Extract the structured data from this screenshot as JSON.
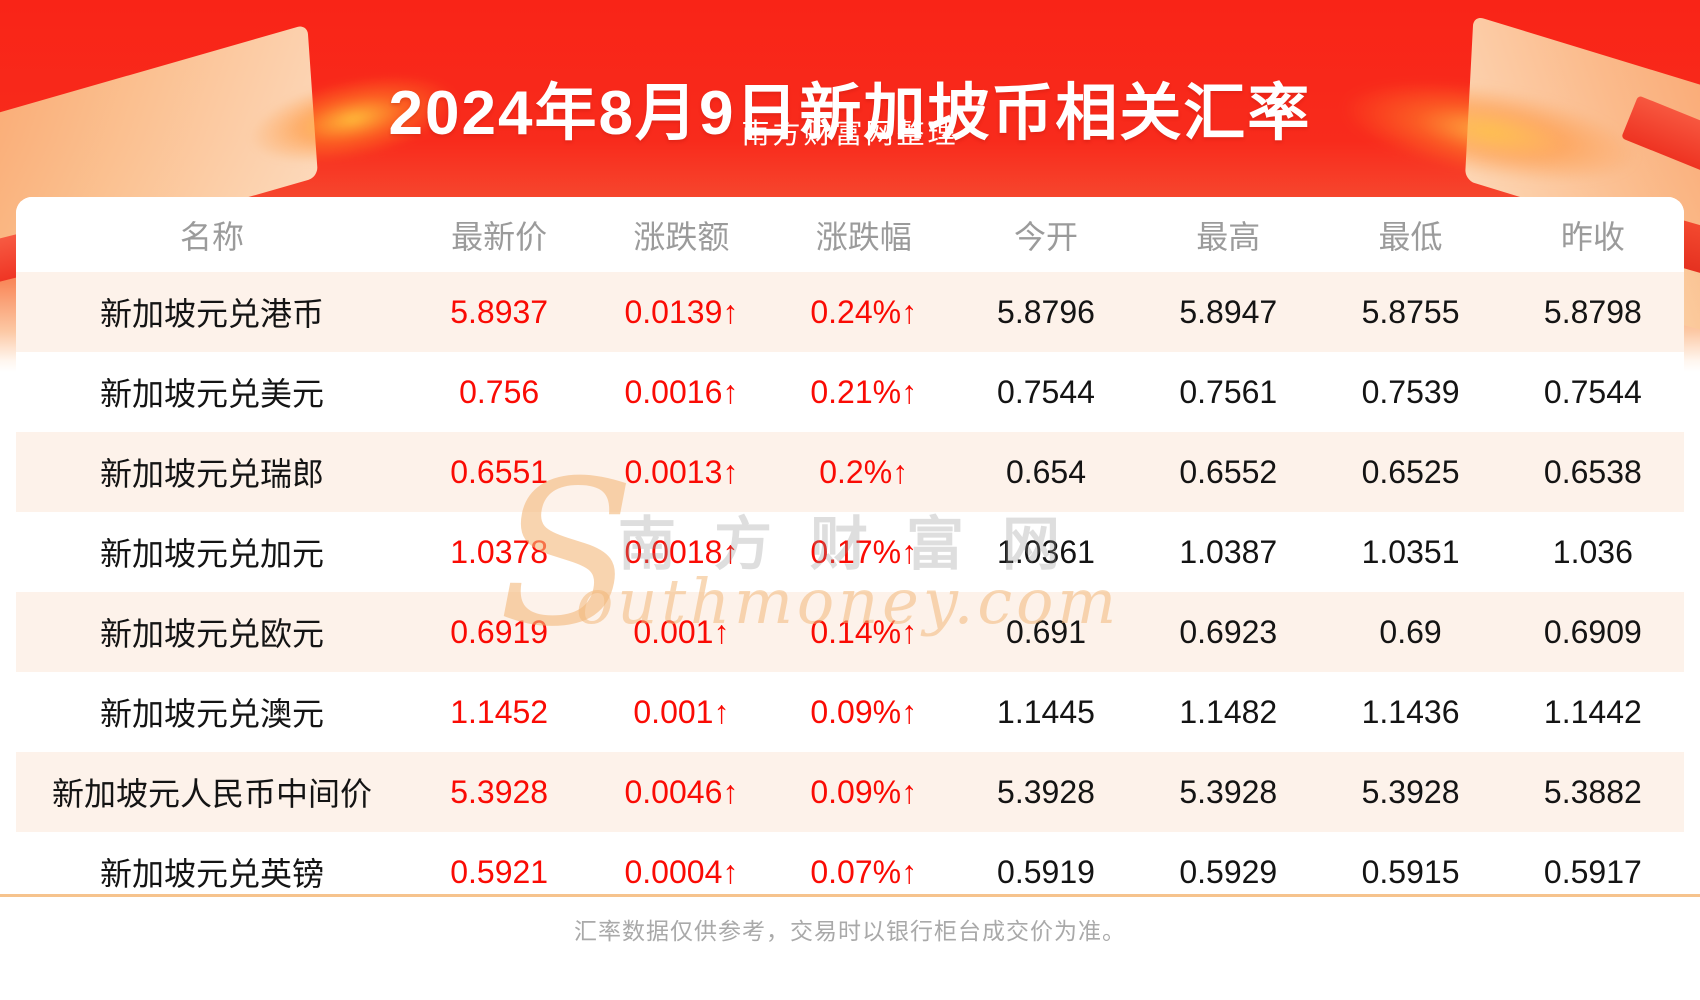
{
  "page": {
    "title": "2024年8月9日新加坡币相关汇率",
    "subtitle": "南方财富网整理",
    "footer_note": "汇率数据仅供参考，交易时以银行柜台成交价为准。"
  },
  "watermark": {
    "initial": "S",
    "cn": "南方财富网",
    "en": "outhmoney.com"
  },
  "colors": {
    "banner_red_top": "#f92417",
    "banner_fade_bottom": "#ffffff",
    "up_red": "#fa0b04",
    "row_alt_pink": "#fdf2ea",
    "header_gray": "#9b9b9b",
    "cell_black": "#141414",
    "divider_tan": "#f6c38d",
    "footer_gray": "#a9a9a9",
    "deco_gold": "#f9ae74"
  },
  "table": {
    "columns": [
      "名称",
      "最新价",
      "涨跌额",
      "涨跌幅",
      "今开",
      "最高",
      "最低",
      "昨收"
    ],
    "rows": [
      {
        "name": "新加坡元兑港币",
        "last": "5.8937",
        "change": "0.0139↑",
        "change_pct": "0.24%↑",
        "open": "5.8796",
        "high": "5.8947",
        "low": "5.8755",
        "prev_close": "5.8798"
      },
      {
        "name": "新加坡元兑美元",
        "last": "0.756",
        "change": "0.0016↑",
        "change_pct": "0.21%↑",
        "open": "0.7544",
        "high": "0.7561",
        "low": "0.7539",
        "prev_close": "0.7544"
      },
      {
        "name": "新加坡元兑瑞郎",
        "last": "0.6551",
        "change": "0.0013↑",
        "change_pct": "0.2%↑",
        "open": "0.654",
        "high": "0.6552",
        "low": "0.6525",
        "prev_close": "0.6538"
      },
      {
        "name": "新加坡元兑加元",
        "last": "1.0378",
        "change": "0.0018↑",
        "change_pct": "0.17%↑",
        "open": "1.0361",
        "high": "1.0387",
        "low": "1.0351",
        "prev_close": "1.036"
      },
      {
        "name": "新加坡元兑欧元",
        "last": "0.6919",
        "change": "0.001↑",
        "change_pct": "0.14%↑",
        "open": "0.691",
        "high": "0.6923",
        "low": "0.69",
        "prev_close": "0.6909"
      },
      {
        "name": "新加坡元兑澳元",
        "last": "1.1452",
        "change": "0.001↑",
        "change_pct": "0.09%↑",
        "open": "1.1445",
        "high": "1.1482",
        "low": "1.1436",
        "prev_close": "1.1442"
      },
      {
        "name": "新加坡元人民币中间价",
        "last": "5.3928",
        "change": "0.0046↑",
        "change_pct": "0.09%↑",
        "open": "5.3928",
        "high": "5.3928",
        "low": "5.3928",
        "prev_close": "5.3882"
      },
      {
        "name": "新加坡元兑英镑",
        "last": "0.5921",
        "change": "0.0004↑",
        "change_pct": "0.07%↑",
        "open": "0.5919",
        "high": "0.5929",
        "low": "0.5915",
        "prev_close": "0.5917"
      }
    ]
  }
}
